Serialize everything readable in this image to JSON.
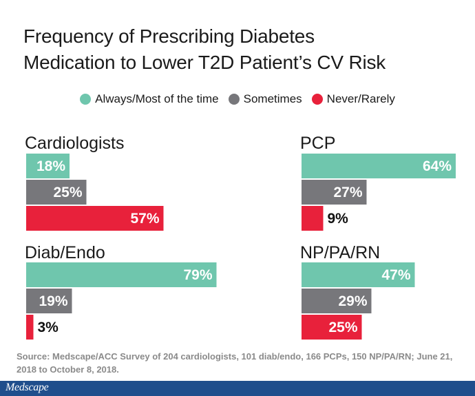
{
  "title_lines": [
    "Frequency of Prescribing Diabetes",
    "Medication to Lower T2D Patient’s CV Risk"
  ],
  "legend": [
    {
      "label": "Always/Most of the time",
      "color": "#6fc6ad"
    },
    {
      "label": "Sometimes",
      "color": "#77777b"
    },
    {
      "label": "Never/Rarely",
      "color": "#e8213b"
    }
  ],
  "source": "Source: Medscape/ACC Survey of 204 cardiologists, 101 diab/endo, 166 PCPs, 150 NP/PA/RN; June 21, 2018 to October 8, 2018.",
  "footer": {
    "logo": "Medscape"
  },
  "chart_data": {
    "type": "bar",
    "orientation": "horizontal",
    "categories": [
      "Always/Most of the time",
      "Sometimes",
      "Never/Rarely"
    ],
    "xlim": [
      0,
      100
    ],
    "panels": [
      {
        "name": "Cardiologists",
        "values": [
          18,
          25,
          57
        ],
        "labels": [
          "18%",
          "25%",
          "57%"
        ]
      },
      {
        "name": "PCP",
        "values": [
          64,
          27,
          9
        ],
        "labels": [
          "64%",
          "27%",
          "9%"
        ]
      },
      {
        "name": "Diab/Endo",
        "values": [
          79,
          19,
          3
        ],
        "labels": [
          "79%",
          "19%",
          "3%"
        ]
      },
      {
        "name": "NP/PA/RN",
        "values": [
          47,
          29,
          25
        ],
        "labels": [
          "47%",
          "29%",
          "25%"
        ]
      }
    ],
    "colors": [
      "#6fc6ad",
      "#77777b",
      "#e8213b"
    ]
  }
}
